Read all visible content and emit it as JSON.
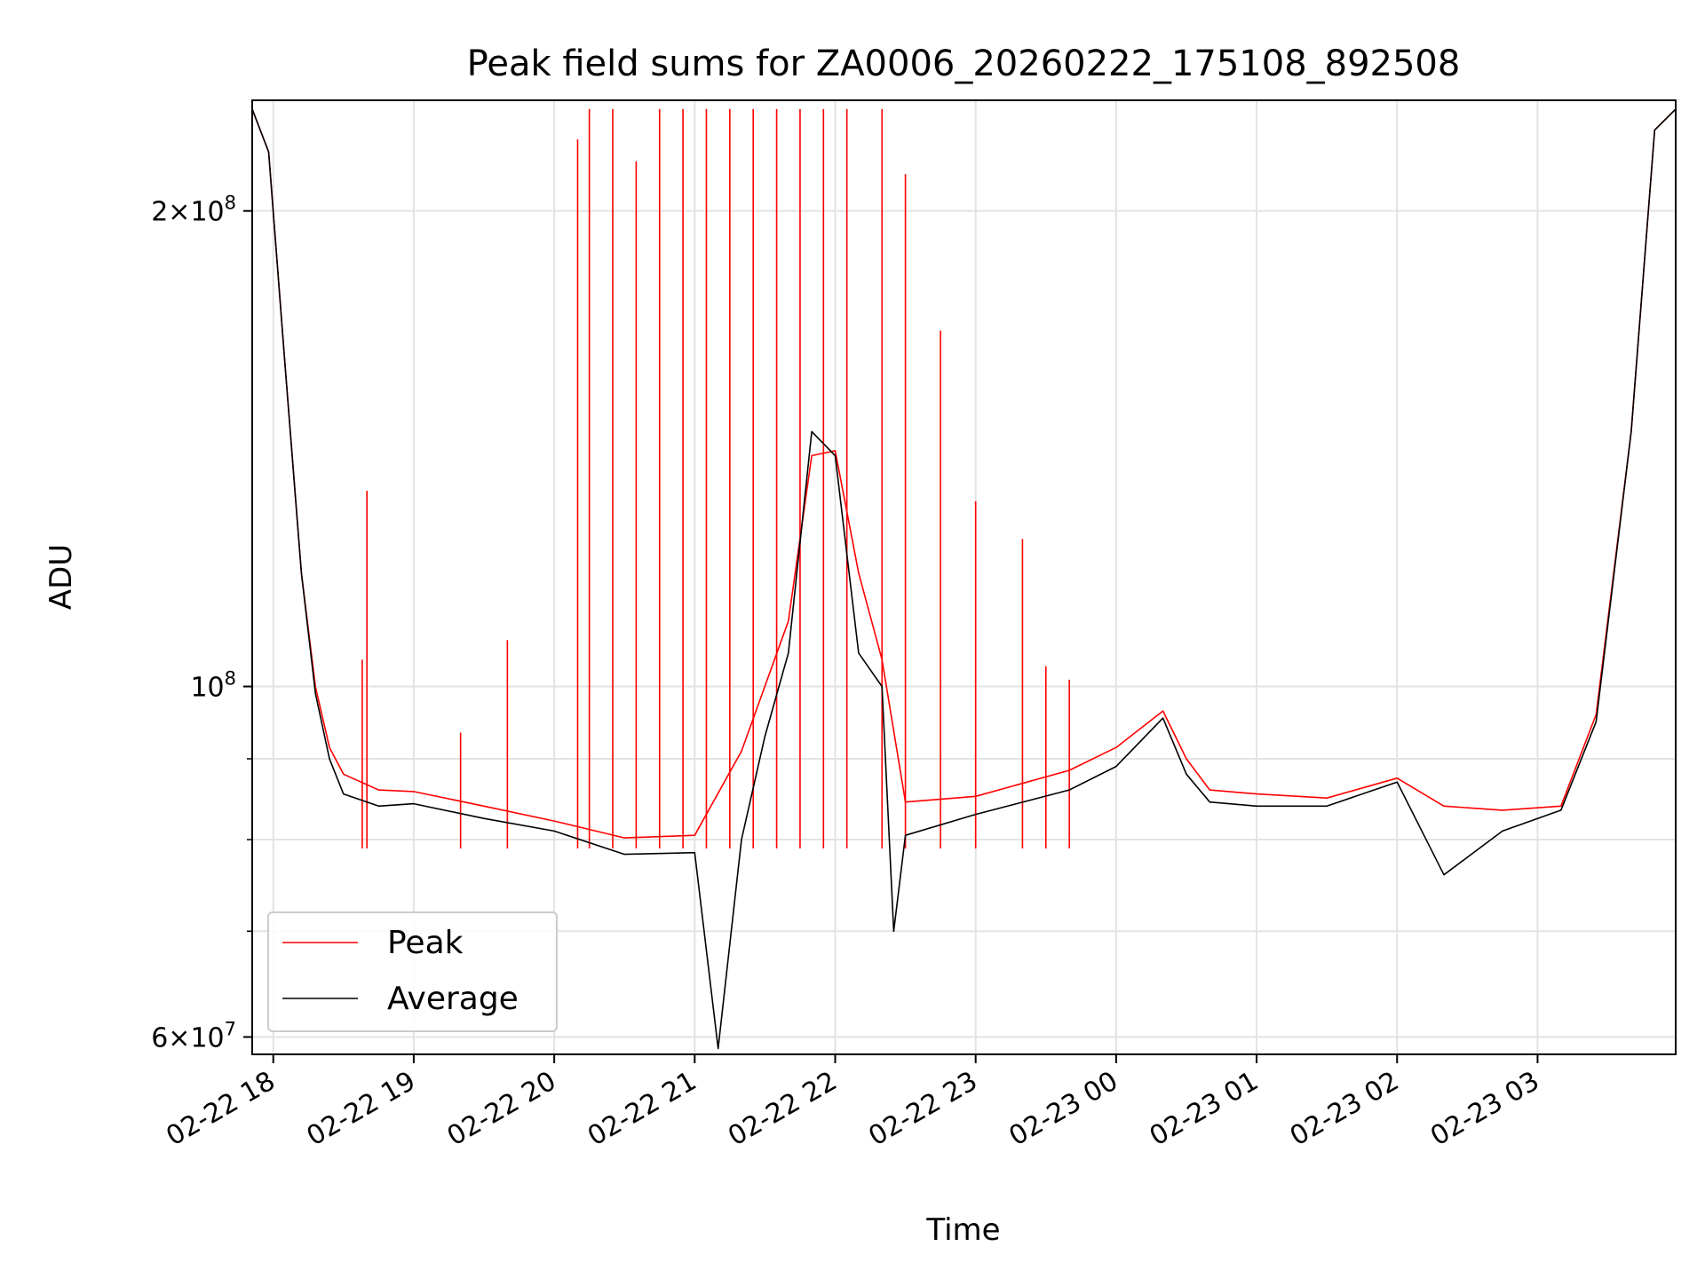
{
  "chart_data": {
    "type": "line",
    "title": "Peak field sums for ZA0006_20260222_175108_892508",
    "xlabel": "Time",
    "ylabel": "ADU",
    "yscale": "log",
    "ylim": [
      58500000,
      235000000
    ],
    "xlim": [
      "2026-02-22 17:51",
      "2026-02-23 03:59"
    ],
    "grid": true,
    "legend": "lower left",
    "x_ticks": [
      "02-22 18",
      "02-22 19",
      "02-22 20",
      "02-22 21",
      "02-22 22",
      "02-22 23",
      "02-23 00",
      "02-23 01",
      "02-23 02",
      "02-23 03"
    ],
    "y_ticks": [
      {
        "value": 60000000,
        "mantissa": "6",
        "exponent": "7"
      },
      {
        "value": 100000000,
        "mantissa": "",
        "exponent": "8"
      },
      {
        "value": 200000000,
        "mantissa": "2",
        "exponent": "8"
      }
    ],
    "y_minor_ticks": [
      70000000,
      80000000,
      90000000
    ],
    "series": [
      {
        "name": "Peak",
        "color": "#ff0000",
        "points": [
          [
            "02-22 17:51",
            232000000
          ],
          [
            "02-22 17:58",
            218000000
          ],
          [
            "02-22 18:05",
            160000000
          ],
          [
            "02-22 18:12",
            118000000
          ],
          [
            "02-22 18:18",
            100000000
          ],
          [
            "02-22 18:24",
            91500000
          ],
          [
            "02-22 18:30",
            88000000
          ],
          [
            "02-22 18:45",
            86000000
          ],
          [
            "02-22 19:00",
            85800000
          ],
          [
            "02-22 19:30",
            84000000
          ],
          [
            "02-22 20:00",
            82200000
          ],
          [
            "02-22 20:30",
            80200000
          ],
          [
            "02-22 21:00",
            80500000
          ],
          [
            "02-22 21:20",
            91000000
          ],
          [
            "02-22 21:40",
            110000000
          ],
          [
            "02-22 21:50",
            140000000
          ],
          [
            "02-22 22:00",
            141000000
          ],
          [
            "02-22 22:10",
            118000000
          ],
          [
            "02-22 22:20",
            104000000
          ],
          [
            "02-22 22:30",
            84500000
          ],
          [
            "02-22 23:00",
            85200000
          ],
          [
            "02-22 23:40",
            88500000
          ],
          [
            "02-23 00:00",
            91500000
          ],
          [
            "02-23 00:20",
            96500000
          ],
          [
            "02-23 00:30",
            90000000
          ],
          [
            "02-23 00:40",
            86000000
          ],
          [
            "02-23 01:00",
            85500000
          ],
          [
            "02-23 01:30",
            85000000
          ],
          [
            "02-23 02:00",
            87500000
          ],
          [
            "02-23 02:20",
            84000000
          ],
          [
            "02-23 02:45",
            83500000
          ],
          [
            "02-23 03:10",
            84000000
          ],
          [
            "02-23 03:25",
            96000000
          ],
          [
            "02-23 03:40",
            145000000
          ],
          [
            "02-23 03:50",
            225000000
          ],
          [
            "02-23 03:59",
            232000000
          ]
        ],
        "spikes": [
          [
            "02-22 18:40",
            133000000
          ],
          [
            "02-22 18:38",
            104000000
          ],
          [
            "02-22 19:20",
            93500000
          ],
          [
            "02-22 19:40",
            107000000
          ],
          [
            "02-22 20:10",
            222000000
          ],
          [
            "02-22 20:15",
            232000000
          ],
          [
            "02-22 20:25",
            232000000
          ],
          [
            "02-22 20:35",
            215000000
          ],
          [
            "02-22 20:45",
            232000000
          ],
          [
            "02-22 20:55",
            232000000
          ],
          [
            "02-22 21:05",
            232000000
          ],
          [
            "02-22 21:15",
            232000000
          ],
          [
            "02-22 21:25",
            232000000
          ],
          [
            "02-22 21:35",
            232000000
          ],
          [
            "02-22 21:45",
            232000000
          ],
          [
            "02-22 21:55",
            232000000
          ],
          [
            "02-22 22:05",
            232000000
          ],
          [
            "02-22 22:20",
            232000000
          ],
          [
            "02-22 22:30",
            211000000
          ],
          [
            "02-22 22:45",
            168000000
          ],
          [
            "02-22 23:00",
            131000000
          ],
          [
            "02-22 23:20",
            124000000
          ],
          [
            "02-22 23:30",
            103000000
          ],
          [
            "02-22 23:40",
            101000000
          ]
        ]
      },
      {
        "name": "Average",
        "color": "#000000",
        "points": [
          [
            "02-22 17:51",
            232000000
          ],
          [
            "02-22 17:58",
            218000000
          ],
          [
            "02-22 18:05",
            160000000
          ],
          [
            "02-22 18:12",
            118000000
          ],
          [
            "02-22 18:18",
            99000000
          ],
          [
            "02-22 18:24",
            90000000
          ],
          [
            "02-22 18:30",
            85500000
          ],
          [
            "02-22 18:45",
            84000000
          ],
          [
            "02-22 19:00",
            84300000
          ],
          [
            "02-22 19:30",
            82500000
          ],
          [
            "02-22 20:00",
            81000000
          ],
          [
            "02-22 20:30",
            78300000
          ],
          [
            "02-22 21:00",
            78500000
          ],
          [
            "02-22 21:10",
            59000000
          ],
          [
            "02-22 21:20",
            80000000
          ],
          [
            "02-22 21:30",
            93000000
          ],
          [
            "02-22 21:40",
            105000000
          ],
          [
            "02-22 21:50",
            145000000
          ],
          [
            "02-22 22:00",
            140000000
          ],
          [
            "02-22 22:10",
            105000000
          ],
          [
            "02-22 22:20",
            100000000
          ],
          [
            "02-22 22:25",
            70000000
          ],
          [
            "02-22 22:30",
            80500000
          ],
          [
            "02-22 23:00",
            83000000
          ],
          [
            "02-22 23:40",
            86000000
          ],
          [
            "02-23 00:00",
            89000000
          ],
          [
            "02-23 00:20",
            95500000
          ],
          [
            "02-23 00:30",
            88000000
          ],
          [
            "02-23 00:40",
            84500000
          ],
          [
            "02-23 01:00",
            84000000
          ],
          [
            "02-23 01:30",
            84000000
          ],
          [
            "02-23 02:00",
            87000000
          ],
          [
            "02-23 02:20",
            76000000
          ],
          [
            "02-23 02:45",
            81000000
          ],
          [
            "02-23 03:10",
            83500000
          ],
          [
            "02-23 03:25",
            95000000
          ],
          [
            "02-23 03:40",
            145000000
          ],
          [
            "02-23 03:50",
            225000000
          ],
          [
            "02-23 03:59",
            232000000
          ]
        ]
      }
    ]
  }
}
